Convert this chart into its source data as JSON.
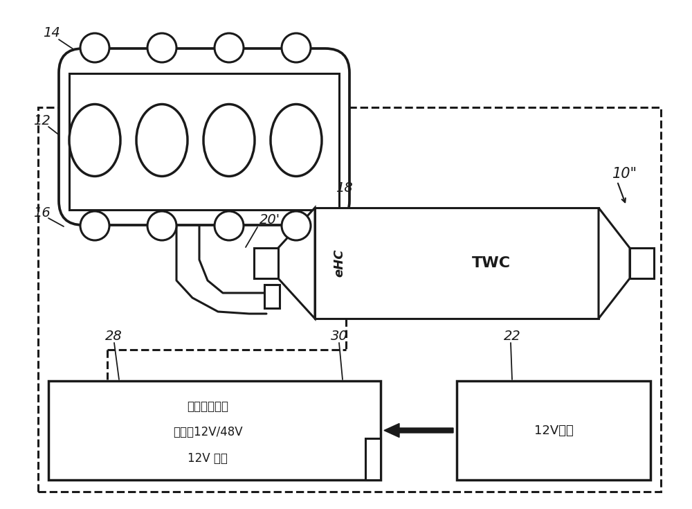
{
  "bg_color": "#ffffff",
  "line_color": "#1a1a1a",
  "line_width": 2.2,
  "label_14": "14",
  "label_12": "12",
  "label_16": "16",
  "label_20p": "20'",
  "label_18": "18",
  "label_10pp": "10\"",
  "label_28": "28",
  "label_30": "30",
  "label_22": "22",
  "ehc_text": "eHC",
  "twc_text": "TWC",
  "box28_text1": "超级电容器组",
  "box28_text2": "可切换12V/48V",
  "box28_text3": "12V 模式",
  "box22_text": "12V电池"
}
